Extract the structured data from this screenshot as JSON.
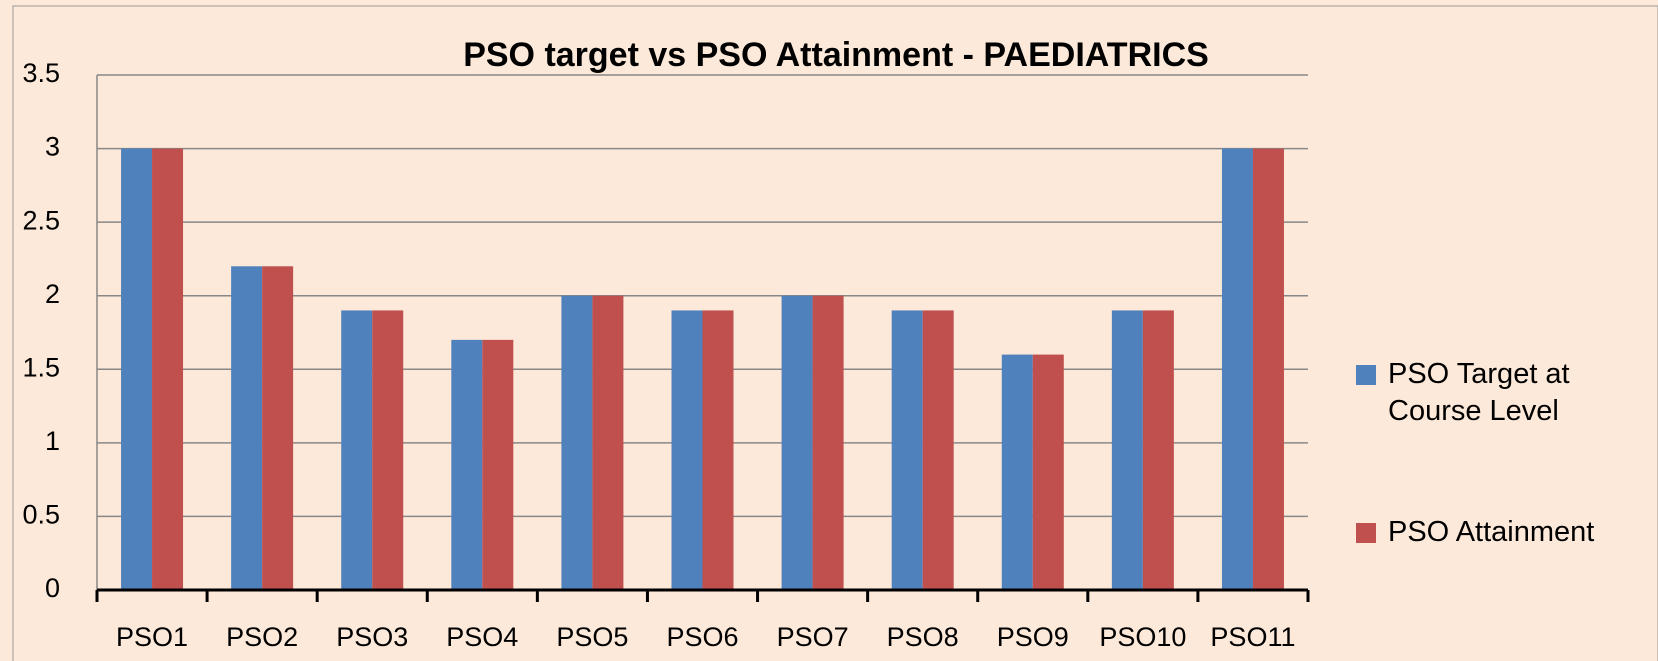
{
  "chart_data": {
    "type": "bar",
    "title": "PSO target  vs PSO Attainment  - PAEDIATRICS",
    "categories": [
      "PSO1",
      "PSO2",
      "PSO3",
      "PSO4",
      "PSO5",
      "PSO6",
      "PSO7",
      "PSO8",
      "PSO9",
      "PSO10",
      "PSO11"
    ],
    "series": [
      {
        "name": "PSO Target at Course Level",
        "color": "#4f81bd",
        "values": [
          3,
          2.2,
          1.9,
          1.7,
          2,
          1.9,
          2,
          1.9,
          1.6,
          1.9,
          3
        ]
      },
      {
        "name": "PSO Attainment",
        "color": "#c0504d",
        "values": [
          3,
          2.2,
          1.9,
          1.7,
          2,
          1.9,
          2,
          1.9,
          1.6,
          1.9,
          3
        ]
      }
    ],
    "ylim": [
      0,
      3.5
    ],
    "yticks": [
      0,
      0.5,
      1,
      1.5,
      2,
      2.5,
      3,
      3.5
    ],
    "grid": true,
    "legend": "right"
  }
}
